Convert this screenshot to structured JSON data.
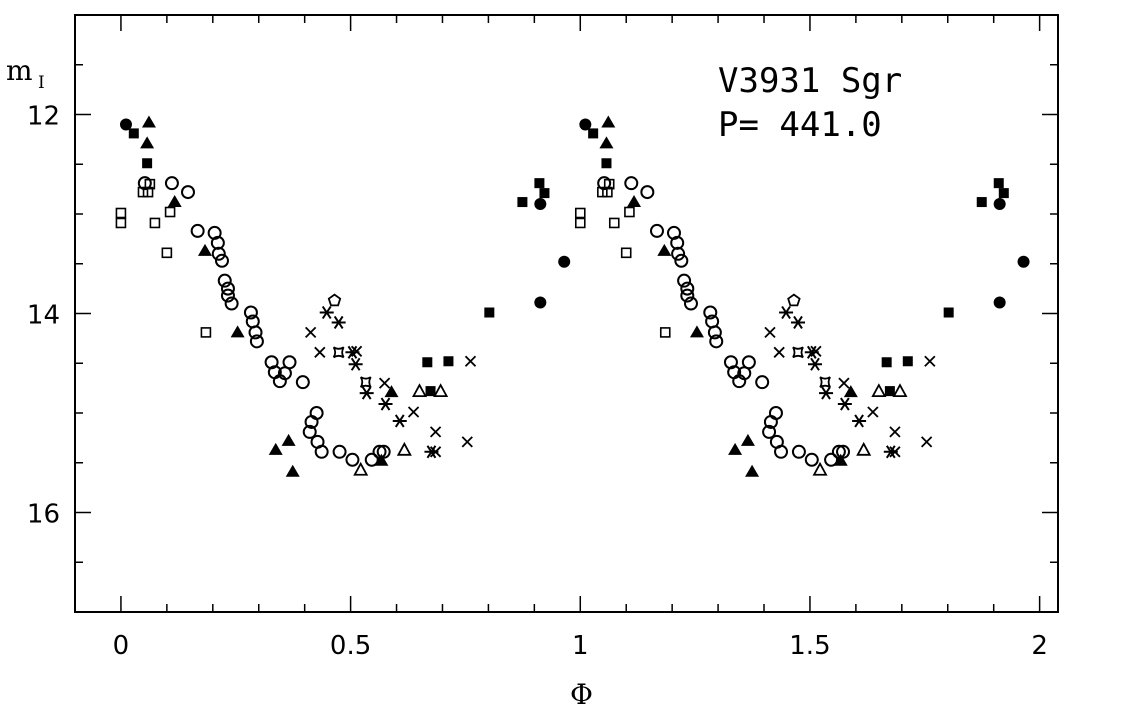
{
  "chart_data": {
    "type": "scatter",
    "title": "",
    "annotations": [
      "V3931 Sgr",
      "P= 441.0"
    ],
    "xlabel": "Φ",
    "ylabel": "m",
    "ylabel_sub": "I",
    "xlim": [
      -0.1,
      2.04
    ],
    "ylim": [
      17,
      11
    ],
    "y_inverted": true,
    "grid": false,
    "legend": "none",
    "x_ticks": [
      0,
      0.5,
      1,
      1.5,
      2
    ],
    "x_tick_labels": [
      "0",
      "0.5",
      "1",
      "1.5",
      "2"
    ],
    "y_ticks": [
      12,
      14,
      16
    ],
    "y_tick_labels": [
      "12",
      "14",
      "16"
    ],
    "phase_repeated": true,
    "color": "#000000",
    "series": [
      {
        "marker": "filled-circle",
        "points": [
          [
            0.011,
            12.1
          ],
          [
            0.913,
            12.9
          ],
          [
            0.965,
            13.48
          ],
          [
            0.913,
            13.89
          ]
        ]
      },
      {
        "marker": "filled-square",
        "points": [
          [
            0.028,
            12.19
          ],
          [
            0.057,
            12.49
          ],
          [
            0.874,
            12.88
          ],
          [
            0.911,
            12.69
          ],
          [
            0.922,
            12.79
          ],
          [
            0.802,
            13.99
          ],
          [
            0.667,
            14.49
          ],
          [
            0.674,
            14.78
          ],
          [
            0.713,
            14.48
          ]
        ]
      },
      {
        "marker": "filled-triangle",
        "points": [
          [
            0.061,
            12.08
          ],
          [
            0.057,
            12.29
          ],
          [
            0.117,
            12.88
          ],
          [
            0.183,
            13.37
          ],
          [
            0.254,
            14.19
          ],
          [
            0.337,
            15.37
          ],
          [
            0.365,
            15.28
          ],
          [
            0.374,
            15.59
          ],
          [
            0.589,
            14.79
          ],
          [
            0.567,
            15.48
          ]
        ]
      },
      {
        "marker": "open-triangle",
        "points": [
          [
            0.522,
            15.57
          ],
          [
            0.617,
            15.37
          ],
          [
            0.65,
            14.78
          ],
          [
            0.696,
            14.78
          ]
        ]
      },
      {
        "marker": "open-square",
        "points": [
          [
            0.0,
            12.99
          ],
          [
            0.0,
            13.09
          ],
          [
            0.059,
            12.78
          ],
          [
            0.063,
            12.7
          ],
          [
            0.048,
            12.78
          ],
          [
            0.074,
            13.09
          ],
          [
            0.107,
            12.98
          ],
          [
            0.1,
            13.39
          ],
          [
            0.185,
            14.19
          ]
        ]
      },
      {
        "marker": "open-circle",
        "points": [
          [
            0.052,
            12.69
          ],
          [
            0.111,
            12.69
          ],
          [
            0.146,
            12.78
          ],
          [
            0.167,
            13.17
          ],
          [
            0.204,
            13.19
          ],
          [
            0.211,
            13.29
          ],
          [
            0.213,
            13.4
          ],
          [
            0.22,
            13.47
          ],
          [
            0.226,
            13.67
          ],
          [
            0.233,
            13.75
          ],
          [
            0.233,
            13.82
          ],
          [
            0.241,
            13.9
          ],
          [
            0.283,
            13.99
          ],
          [
            0.287,
            14.08
          ],
          [
            0.293,
            14.19
          ],
          [
            0.296,
            14.28
          ],
          [
            0.328,
            14.49
          ],
          [
            0.335,
            14.59
          ],
          [
            0.346,
            14.68
          ],
          [
            0.357,
            14.6
          ],
          [
            0.367,
            14.49
          ],
          [
            0.396,
            14.69
          ],
          [
            0.426,
            15.0
          ],
          [
            0.415,
            15.09
          ],
          [
            0.411,
            15.19
          ],
          [
            0.428,
            15.29
          ],
          [
            0.437,
            15.39
          ],
          [
            0.476,
            15.39
          ],
          [
            0.504,
            15.47
          ],
          [
            0.546,
            15.47
          ],
          [
            0.563,
            15.39
          ],
          [
            0.572,
            15.39
          ]
        ]
      },
      {
        "marker": "cross",
        "points": [
          [
            0.413,
            14.19
          ],
          [
            0.433,
            14.39
          ],
          [
            0.513,
            14.38
          ],
          [
            0.574,
            14.7
          ],
          [
            0.637,
            14.99
          ],
          [
            0.685,
            15.39
          ],
          [
            0.754,
            15.29
          ],
          [
            0.761,
            14.48
          ],
          [
            0.685,
            15.19
          ]
        ]
      },
      {
        "marker": "asterisk",
        "points": [
          [
            0.448,
            13.99
          ],
          [
            0.474,
            14.09
          ],
          [
            0.504,
            14.39
          ],
          [
            0.511,
            14.51
          ],
          [
            0.535,
            14.8
          ],
          [
            0.576,
            14.91
          ],
          [
            0.607,
            15.08
          ],
          [
            0.676,
            15.39
          ]
        ]
      },
      {
        "marker": "open-pentagon",
        "points": [
          [
            0.465,
            13.87
          ]
        ]
      },
      {
        "marker": "open-star-square",
        "points": [
          [
            0.474,
            14.39
          ],
          [
            0.533,
            14.69
          ]
        ]
      }
    ]
  }
}
